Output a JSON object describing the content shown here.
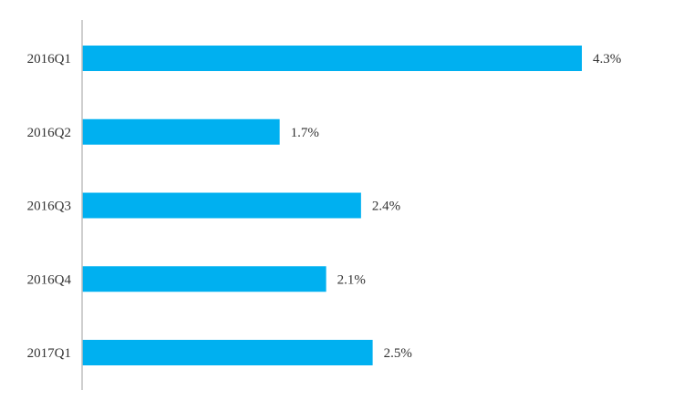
{
  "chart_data": {
    "type": "bar",
    "orientation": "horizontal",
    "categories": [
      "2016Q1",
      "2016Q2",
      "2016Q3",
      "2016Q4",
      "2017Q1"
    ],
    "values": [
      4.3,
      1.7,
      2.4,
      2.1,
      2.5
    ],
    "value_labels": [
      "4.3%",
      "1.7%",
      "2.4%",
      "2.1%",
      "2.5%"
    ],
    "title": "",
    "xlabel": "",
    "ylabel": "",
    "xlim": [
      0,
      4.3
    ],
    "grid": false,
    "legend": "none",
    "bar_color": "#00B0F0",
    "axis_color": "#BFBFBF",
    "text_color": "#333333"
  }
}
